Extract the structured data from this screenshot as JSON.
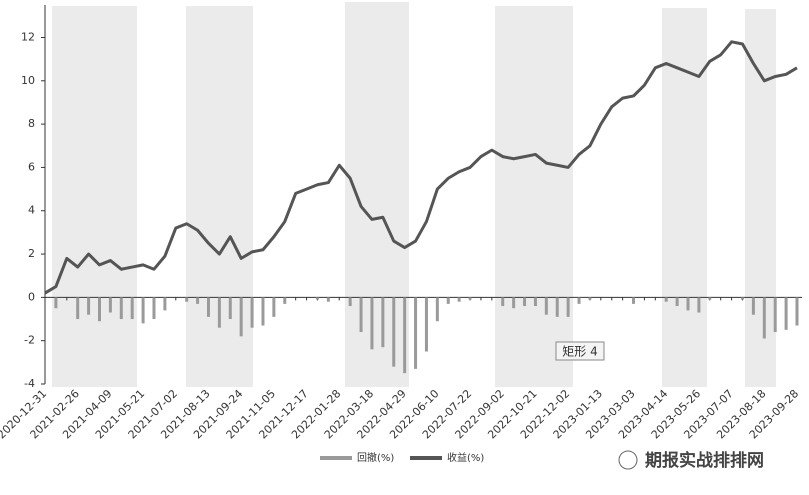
{
  "chart_data": {
    "type": "bar_line",
    "categories": [
      "2020-12-31",
      null,
      null,
      "2021-02-26",
      null,
      null,
      "2021-04-09",
      null,
      null,
      "2021-05-21",
      null,
      null,
      "2021-07-02",
      null,
      null,
      "2021-08-13",
      null,
      null,
      "2021-09-24",
      null,
      null,
      "2021-11-05",
      null,
      null,
      "2021-12-17",
      null,
      null,
      "2022-01-28",
      null,
      null,
      "2022-03-18",
      null,
      null,
      "2022-04-29",
      null,
      null,
      "2022-06-10",
      null,
      null,
      "2022-07-22",
      null,
      null,
      "2022-09-02",
      null,
      null,
      "2022-10-21",
      null,
      null,
      "2022-12-02",
      null,
      null,
      "2023-01-13",
      null,
      null,
      "2023-03-03",
      null,
      null,
      "2023-04-14",
      null,
      null,
      "2023-05-26",
      null,
      null,
      "2023-07-07",
      null,
      null,
      "2023-08-18",
      null,
      null,
      "2023-09-28"
    ],
    "series": [
      {
        "name": "回撤(%)",
        "kind": "bar",
        "color": "#9a9a9a",
        "values": [
          0,
          -0.5,
          0,
          -1.0,
          -0.8,
          -1.1,
          -0.7,
          -1.0,
          -1.0,
          -1.2,
          -1.0,
          -0.6,
          0,
          -0.2,
          -0.3,
          -0.9,
          -1.4,
          -1.0,
          -1.8,
          -1.4,
          -1.3,
          -0.9,
          -0.3,
          0,
          0,
          -0.1,
          -0.2,
          0,
          -0.4,
          -1.6,
          -2.4,
          -2.3,
          -3.2,
          -3.5,
          -3.3,
          -2.5,
          -1.1,
          -0.3,
          -0.2,
          -0.1,
          0,
          0,
          -0.4,
          -0.5,
          -0.4,
          -0.4,
          -0.8,
          -0.9,
          -0.9,
          -0.3,
          -0.1,
          0,
          0,
          0,
          -0.3,
          0,
          0,
          -0.2,
          -0.4,
          -0.6,
          -0.7,
          -0.1,
          0,
          0,
          -0.1,
          -0.8,
          -1.9,
          -1.6,
          -1.5,
          -1.3
        ]
      },
      {
        "name": "收益(%)",
        "kind": "line",
        "color": "#555555",
        "values": [
          0.2,
          0.5,
          1.8,
          1.4,
          2.0,
          1.5,
          1.7,
          1.3,
          1.4,
          1.5,
          1.3,
          1.9,
          3.2,
          3.4,
          3.1,
          2.5,
          2.0,
          2.8,
          1.8,
          2.1,
          2.2,
          2.8,
          3.5,
          4.8,
          5.0,
          5.2,
          5.3,
          6.1,
          5.5,
          4.2,
          3.6,
          3.7,
          2.6,
          2.3,
          2.6,
          3.5,
          5.0,
          5.5,
          5.8,
          6.0,
          6.5,
          6.8,
          6.5,
          6.4,
          6.5,
          6.6,
          6.2,
          6.1,
          6.0,
          6.6,
          7.0,
          8.0,
          8.8,
          9.2,
          9.3,
          9.8,
          10.6,
          10.8,
          10.6,
          10.4,
          10.2,
          10.9,
          11.2,
          11.8,
          11.7,
          10.8,
          10.0,
          10.2,
          10.3,
          10.6
        ]
      }
    ],
    "ylim": [
      -4,
      13.5
    ],
    "yticks": [
      -4,
      -2,
      0,
      2,
      4,
      6,
      8,
      10,
      12
    ],
    "annotation": "矩形 4",
    "watermark": "期报实战排排网"
  }
}
